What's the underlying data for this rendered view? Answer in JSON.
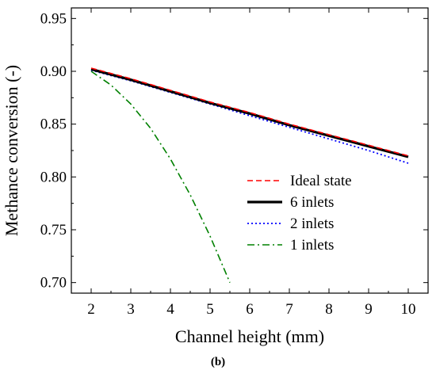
{
  "chart_data": {
    "type": "line",
    "xlabel": "Channel height (mm)",
    "ylabel": "Methance conversion (-)",
    "caption": "(b)",
    "xlim": [
      1.5,
      10.5
    ],
    "ylim": [
      0.69,
      0.96
    ],
    "xticks": [
      2,
      3,
      4,
      5,
      6,
      7,
      8,
      9,
      10
    ],
    "yticks": [
      0.7,
      0.75,
      0.8,
      0.85,
      0.9,
      0.95
    ],
    "xtick_labels": [
      "2",
      "3",
      "4",
      "5",
      "6",
      "7",
      "8",
      "9",
      "10"
    ],
    "ytick_labels": [
      "0.70",
      "0.75",
      "0.80",
      "0.85",
      "0.90",
      "0.95"
    ],
    "grid": false,
    "legend_position": "lower-right",
    "series": [
      {
        "name": "Ideal state",
        "color": "#ff0000",
        "style": "dashed",
        "x": [
          2,
          3,
          4,
          5,
          6,
          7,
          8,
          9,
          10
        ],
        "y": [
          0.903,
          0.893,
          0.882,
          0.871,
          0.861,
          0.85,
          0.84,
          0.83,
          0.82
        ]
      },
      {
        "name": "6 inlets",
        "color": "#000000",
        "style": "solid",
        "x": [
          2,
          3,
          4,
          5,
          6,
          7,
          8,
          9,
          10
        ],
        "y": [
          0.902,
          0.892,
          0.881,
          0.87,
          0.86,
          0.849,
          0.839,
          0.829,
          0.819
        ]
      },
      {
        "name": "2 inlets",
        "color": "#0000ff",
        "style": "dotted",
        "x": [
          2,
          3,
          4,
          5,
          6,
          7,
          8,
          9,
          10
        ],
        "y": [
          0.901,
          0.891,
          0.88,
          0.869,
          0.858,
          0.847,
          0.836,
          0.825,
          0.813
        ]
      },
      {
        "name": "1 inlets",
        "color": "#008000",
        "style": "dashdot",
        "x": [
          2,
          2.5,
          3,
          3.5,
          4,
          4.5,
          5,
          5.5
        ],
        "y": [
          0.9,
          0.887,
          0.869,
          0.846,
          0.817,
          0.783,
          0.744,
          0.7
        ]
      }
    ]
  }
}
